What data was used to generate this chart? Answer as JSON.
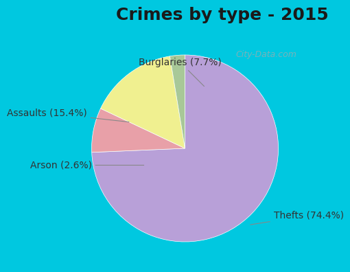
{
  "title": "Crimes by type - 2015",
  "slices": [
    {
      "label": "Thefts (74.4%)",
      "value": 74.4,
      "color": "#b8a0d8"
    },
    {
      "label": "Burglaries (7.7%)",
      "value": 7.7,
      "color": "#e8a0a8"
    },
    {
      "label": "Assaults (15.4%)",
      "value": 15.4,
      "color": "#f0f090"
    },
    {
      "label": "Arson (2.6%)",
      "value": 2.6,
      "color": "#a8c898"
    }
  ],
  "background_top": "#00c8e0",
  "background_main": "#c8e8d8",
  "title_fontsize": 18,
  "label_fontsize": 10,
  "watermark": "City-Data.com"
}
